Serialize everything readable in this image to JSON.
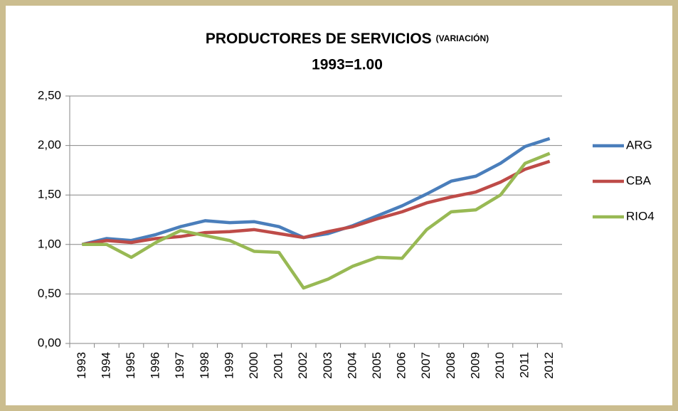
{
  "chart_data": {
    "type": "line",
    "title": "PRODUCTORES DE SERVICIOS",
    "title_note": "(VARIACIÓN)",
    "subtitle": "1993=1.00",
    "categories": [
      "1993",
      "1994",
      "1995",
      "1996",
      "1997",
      "1998",
      "1999",
      "2000",
      "2001",
      "2002",
      "2003",
      "2004",
      "2005",
      "2006",
      "2007",
      "2008",
      "2009",
      "2010",
      "2011",
      "2012"
    ],
    "series": [
      {
        "name": "ARG",
        "color": "#4a7ebb",
        "values": [
          1.0,
          1.06,
          1.04,
          1.1,
          1.18,
          1.24,
          1.22,
          1.23,
          1.18,
          1.07,
          1.11,
          1.19,
          1.29,
          1.39,
          1.51,
          1.64,
          1.69,
          1.82,
          1.99,
          2.07
        ]
      },
      {
        "name": "CBA",
        "color": "#be4b48",
        "values": [
          1.0,
          1.04,
          1.02,
          1.06,
          1.08,
          1.12,
          1.13,
          1.15,
          1.11,
          1.07,
          1.13,
          1.18,
          1.26,
          1.33,
          1.42,
          1.48,
          1.53,
          1.63,
          1.76,
          1.84
        ]
      },
      {
        "name": "RIO4",
        "color": "#98b954",
        "values": [
          1.0,
          1.0,
          0.87,
          1.02,
          1.14,
          1.09,
          1.04,
          0.93,
          0.92,
          0.56,
          0.65,
          0.78,
          0.87,
          0.86,
          1.15,
          1.33,
          1.35,
          1.5,
          1.82,
          1.92
        ]
      }
    ],
    "ylim": [
      0,
      2.5
    ],
    "yticks": [
      {
        "value": 0,
        "label": "0,00"
      },
      {
        "value": 0.5,
        "label": "0,50"
      },
      {
        "value": 1,
        "label": "1,00"
      },
      {
        "value": 1.5,
        "label": "1,50"
      },
      {
        "value": 2,
        "label": "2,00"
      },
      {
        "value": 2.5,
        "label": "2,50"
      }
    ],
    "grid": true,
    "legend": "right"
  }
}
